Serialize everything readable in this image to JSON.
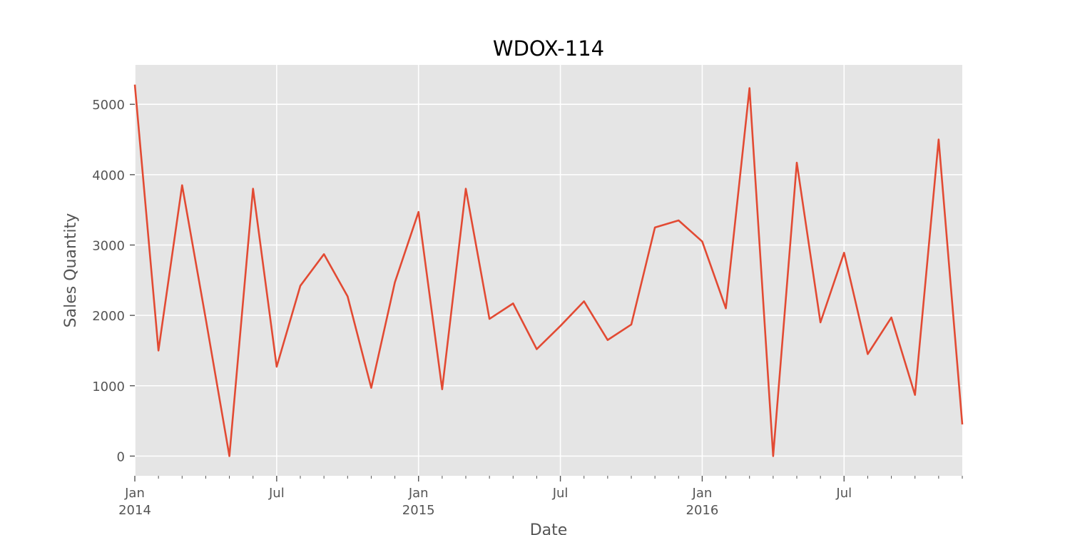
{
  "chart_data": {
    "type": "line",
    "title": "WDOX-114",
    "xlabel": "Date",
    "ylabel": "Sales Quantity",
    "x": [
      "2014-01",
      "2014-02",
      "2014-03",
      "2014-04",
      "2014-05",
      "2014-06",
      "2014-07",
      "2014-08",
      "2014-09",
      "2014-10",
      "2014-11",
      "2014-12",
      "2015-01",
      "2015-02",
      "2015-03",
      "2015-04",
      "2015-05",
      "2015-06",
      "2015-07",
      "2015-08",
      "2015-09",
      "2015-10",
      "2015-11",
      "2015-12",
      "2016-01",
      "2016-02",
      "2016-03",
      "2016-04",
      "2016-05",
      "2016-06",
      "2016-07",
      "2016-08",
      "2016-09",
      "2016-10",
      "2016-11",
      "2016-12"
    ],
    "series": [
      {
        "color": "#e24a33",
        "values": [
          5280,
          1500,
          3850,
          1950,
          0,
          3800,
          1270,
          2420,
          2870,
          2270,
          970,
          2470,
          3470,
          950,
          3800,
          1950,
          2170,
          1520,
          1850,
          2200,
          1650,
          1870,
          3250,
          3350,
          3050,
          2100,
          5230,
          0,
          4170,
          1900,
          2890,
          1450,
          1970,
          870,
          4500,
          450
        ]
      }
    ],
    "ylim": [
      -280,
      5560
    ],
    "xlim": [
      "2014-01",
      "2016-12"
    ],
    "y_ticks": [
      {
        "value": 0,
        "label": "0"
      },
      {
        "value": 1000,
        "label": "1000"
      },
      {
        "value": 2000,
        "label": "2000"
      },
      {
        "value": 3000,
        "label": "3000"
      },
      {
        "value": 4000,
        "label": "4000"
      },
      {
        "value": 5000,
        "label": "5000"
      }
    ],
    "x_major_ticks": [
      {
        "value": "2014-01",
        "label": "Jan",
        "year": "2014"
      },
      {
        "value": "2014-07",
        "label": "Jul",
        "year": ""
      },
      {
        "value": "2015-01",
        "label": "Jan",
        "year": "2015"
      },
      {
        "value": "2015-07",
        "label": "Jul",
        "year": ""
      },
      {
        "value": "2016-01",
        "label": "Jan",
        "year": "2016"
      },
      {
        "value": "2016-07",
        "label": "Jul",
        "year": ""
      }
    ],
    "grid": true,
    "style": {
      "plot_background": "#e5e5e5",
      "grid_color": "#ffffff",
      "tick_color": "#555555",
      "text_color": "#555555",
      "title_color": "#000000"
    }
  }
}
